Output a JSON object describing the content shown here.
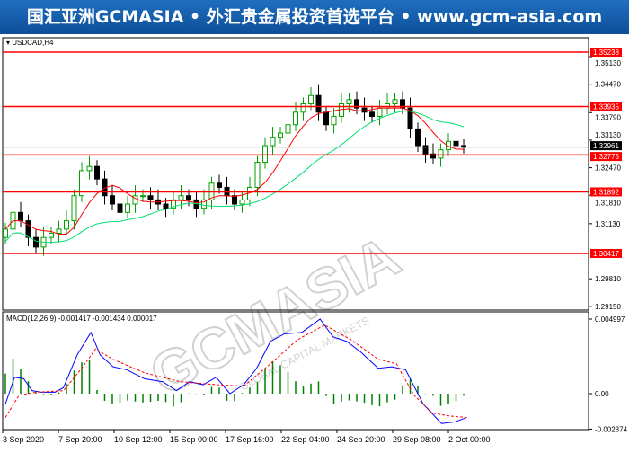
{
  "banner": {
    "title": "国汇亚洲GCMASIA • 外汇贵金属投资首选平台 • www.gcm-asia.com"
  },
  "chart": {
    "symbol": "USDCAD,H4",
    "watermark": "GCMASIA",
    "watermark_sub": "GLOBAL CAPITAL MARKETS",
    "current_price": "1.32961"
  },
  "colors": {
    "bull": "#00a000",
    "bear": "#000000",
    "level": "#ff0000",
    "ma_fast": "#ff0000",
    "ma_slow": "#00e070",
    "macd": "#0000ff",
    "signal": "#ff0000",
    "hist": "#008000"
  },
  "levels": [
    "1.35238",
    "1.33935",
    "1.32775",
    "1.31892",
    "1.30417"
  ],
  "price_ticks": [
    "1.35130",
    "1.34470",
    "1.33790",
    "1.33130",
    "1.32470",
    "1.31810",
    "1.31130",
    "1.29810",
    "1.29150"
  ],
  "macd": {
    "label": "MACD(12,26,9) -0.001417 -0.001434 0.000017",
    "ticks": [
      "0.004997",
      "0.00",
      "-0.002374"
    ]
  },
  "time_labels": [
    "3 Sep 2020",
    "7 Sep 20:00",
    "10 Sep 12:00",
    "15 Sep 00:00",
    "17 Sep 16:00",
    "22 Sep 04:00",
    "24 Sep 20:00",
    "29 Sep 08:00",
    "2 Oct 00:00"
  ],
  "chart_data": {
    "type": "candlestick",
    "closes": [
      1.31,
      1.314,
      1.312,
      1.308,
      1.3057,
      1.308,
      1.309,
      1.31,
      1.312,
      1.318,
      1.324,
      1.325,
      1.322,
      1.318,
      1.316,
      1.314,
      1.316,
      1.318,
      1.318,
      1.317,
      1.316,
      1.315,
      1.317,
      1.318,
      1.317,
      1.315,
      1.317,
      1.321,
      1.32,
      1.318,
      1.316,
      1.317,
      1.32,
      1.326,
      1.33,
      1.332,
      1.333,
      1.335,
      1.338,
      1.34,
      1.342,
      1.338,
      1.335,
      1.337,
      1.34,
      1.341,
      1.339,
      1.338,
      1.337,
      1.339,
      1.34,
      1.341,
      1.339,
      1.334,
      1.33,
      1.328,
      1.327,
      1.329,
      1.331,
      1.33,
      1.3296
    ],
    "macd_main": [
      [
        0,
        -0.0007
      ],
      [
        1.2,
        0.0011
      ],
      [
        2.4,
        0.001
      ],
      [
        3.5,
        0.0002
      ],
      [
        4.7,
        0.0001
      ],
      [
        6.5,
        0.0001
      ],
      [
        7.6,
        0.0004
      ],
      [
        9.4,
        0.0026
      ],
      [
        11.2,
        0.0041
      ],
      [
        12.4,
        0.0026
      ],
      [
        14.1,
        0.0018
      ],
      [
        15.9,
        0.0016
      ],
      [
        18.2,
        0.001
      ],
      [
        20.6,
        0.0008
      ],
      [
        22.4,
        0.0002
      ],
      [
        24.1,
        0.0008
      ],
      [
        25.9,
        0.0006
      ],
      [
        27.6,
        0.0011
      ],
      [
        29.4,
        0
      ],
      [
        31.2,
        0.0006
      ],
      [
        32.9,
        0.0017
      ],
      [
        34.7,
        0.0035
      ],
      [
        36.5,
        0.004
      ],
      [
        38.8,
        0.0041
      ],
      [
        41.2,
        0.005
      ],
      [
        42.9,
        0.0038
      ],
      [
        44.7,
        0.0035
      ],
      [
        46.5,
        0.0028
      ],
      [
        48.8,
        0.0017
      ],
      [
        50.6,
        0.0018
      ],
      [
        52.4,
        0.0016
      ],
      [
        54.7,
        -0.0007
      ],
      [
        57.1,
        -0.002
      ],
      [
        58.8,
        -0.0019
      ],
      [
        60.4,
        -0.0016
      ]
    ],
    "macd_signal": [
      [
        0,
        -0.0016
      ],
      [
        1.8,
        -0.0001
      ],
      [
        4.1,
        0.0001
      ],
      [
        7.6,
        0.0002
      ],
      [
        10,
        0.0017
      ],
      [
        11.8,
        0.003
      ],
      [
        14.1,
        0.0023
      ],
      [
        18.2,
        0.0014
      ],
      [
        22.9,
        0.0008
      ],
      [
        27.6,
        0.0006
      ],
      [
        31.2,
        0.0005
      ],
      [
        34.7,
        0.002
      ],
      [
        38.2,
        0.0036
      ],
      [
        41.8,
        0.0046
      ],
      [
        45.3,
        0.0036
      ],
      [
        48.8,
        0.0023
      ],
      [
        51.2,
        0.002
      ],
      [
        53.5,
        -0.0001
      ],
      [
        55.9,
        -0.0013
      ],
      [
        58.2,
        -0.0015
      ],
      [
        60.4,
        -0.0016
      ]
    ]
  }
}
